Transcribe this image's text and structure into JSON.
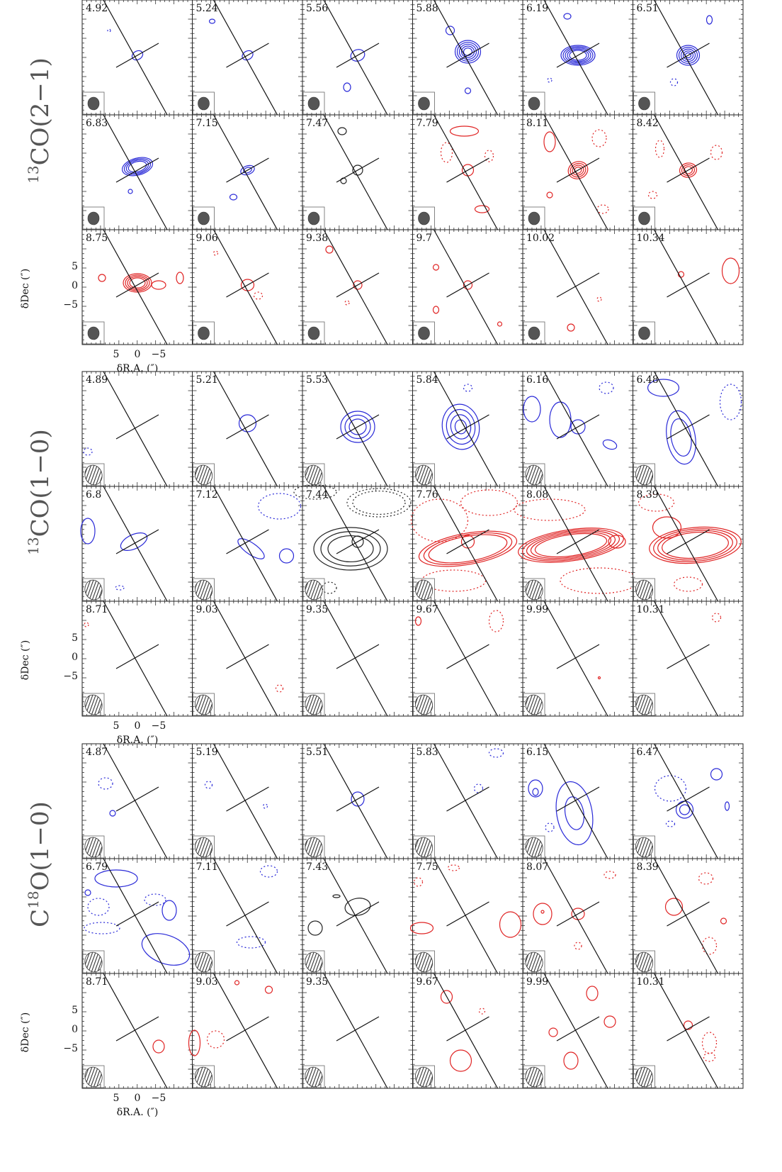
{
  "figure": {
    "colors": {
      "blue": "#2a2ad8",
      "red": "#e02424",
      "black": "#222222",
      "beam": "#555555"
    },
    "axis_labels": {
      "ra": "δR.A. (″)",
      "dec": "δDec (″)"
    },
    "tick_labels": {
      "ra": [
        "5",
        "0",
        "−5"
      ],
      "dec": [
        "5",
        "0",
        "−5"
      ]
    },
    "blocks": [
      {
        "line_label": "13CO(2−1)",
        "label_main": "CO(2−1)",
        "label_sup": "13",
        "beam": "filled",
        "channels": [
          "4.92",
          "5.24",
          "5.56",
          "5.88",
          "6.19",
          "6.51",
          "6.83",
          "7.15",
          "7.47",
          "7.79",
          "8.11",
          "8.42",
          "8.75",
          "9.06",
          "9.38",
          "9.7",
          "10.02",
          "10.34"
        ]
      },
      {
        "line_label": "13CO(1−0)",
        "label_main": "CO(1−0)",
        "label_sup": "13",
        "beam": "hatched",
        "channels": [
          "4.89",
          "5.21",
          "5.53",
          "5.84",
          "6.16",
          "6.48",
          "6.8",
          "7.12",
          "7.44",
          "7.76",
          "8.08",
          "8.39",
          "8.71",
          "9.03",
          "9.35",
          "9.67",
          "9.99",
          "10.31"
        ]
      },
      {
        "line_label": "C18O(1−0)",
        "label_main": "O(1−0)",
        "label_pre": "C",
        "label_sup": "18",
        "beam": "hatched",
        "channels": [
          "4.87",
          "5.19",
          "5.51",
          "5.83",
          "6.15",
          "6.47",
          "6.79",
          "7.11",
          "7.43",
          "7.75",
          "8.07",
          "8.39",
          "8.71",
          "9.03",
          "9.35",
          "9.67",
          "9.99",
          "10.31"
        ]
      }
    ]
  }
}
